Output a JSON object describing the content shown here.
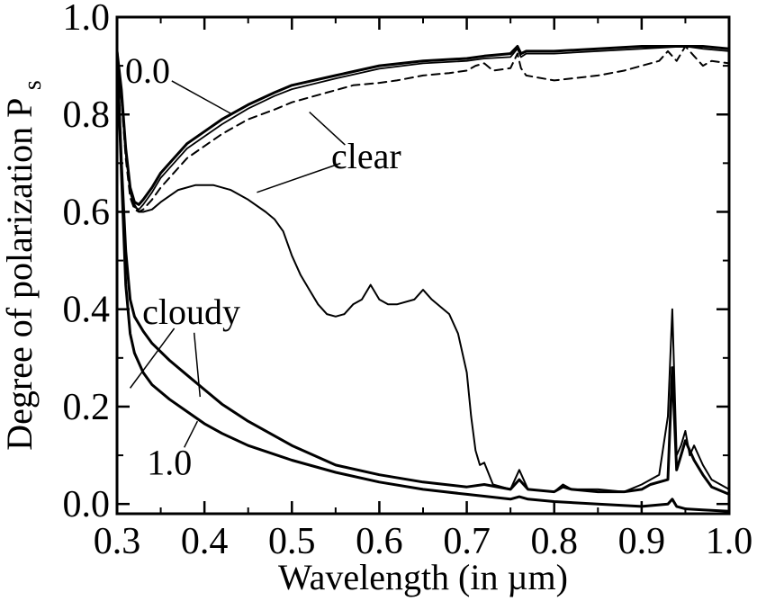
{
  "chart_data": {
    "type": "line",
    "xlabel": "Wavelength (in µm)",
    "ylabel": "Degree of polarization P",
    "ylabel_subscript": "s",
    "xlim": [
      0.3,
      1.0
    ],
    "ylim": [
      -0.02,
      1.0
    ],
    "xticks": [
      0.3,
      0.4,
      0.5,
      0.6,
      0.7,
      0.8,
      0.9,
      1.0
    ],
    "xtick_labels": [
      "0.3",
      "0.4",
      "0.5",
      "0.6",
      "0.7",
      "0.8",
      "0.9",
      "1.0"
    ],
    "yticks": [
      0.0,
      0.2,
      0.4,
      0.6,
      0.8,
      1.0
    ],
    "ytick_labels": [
      "0.0",
      "0.2",
      "0.4",
      "0.6",
      "0.8",
      "1.0"
    ],
    "grid": false,
    "annotations": [
      {
        "text": "0.0",
        "x": 0.335,
        "y": 0.865,
        "arrow_to": [
          0.432,
          0.8
        ]
      },
      {
        "text": "clear",
        "x": 0.585,
        "y": 0.69,
        "arrow_to": [
          [
            0.52,
            0.805
          ],
          [
            0.46,
            0.64
          ]
        ]
      },
      {
        "text": "cloudy",
        "x": 0.385,
        "y": 0.37,
        "arrow_to": [
          [
            0.315,
            0.238
          ],
          [
            0.395,
            0.22
          ]
        ]
      },
      {
        "text": "1.0",
        "x": 0.36,
        "y": 0.06,
        "arrow_to": [
          0.392,
          0.17
        ]
      }
    ],
    "series": [
      {
        "style": "solid-thick",
        "x": [
          0.3,
          0.305,
          0.31,
          0.315,
          0.32,
          0.325,
          0.33,
          0.34,
          0.35,
          0.36,
          0.38,
          0.4,
          0.42,
          0.45,
          0.48,
          0.5,
          0.55,
          0.6,
          0.65,
          0.7,
          0.72,
          0.75,
          0.758,
          0.762,
          0.768,
          0.8,
          0.85,
          0.9,
          0.93,
          0.95,
          0.97,
          1.0
        ],
        "y": [
          0.93,
          0.85,
          0.73,
          0.65,
          0.62,
          0.615,
          0.625,
          0.65,
          0.68,
          0.7,
          0.74,
          0.765,
          0.79,
          0.82,
          0.845,
          0.86,
          0.88,
          0.9,
          0.91,
          0.915,
          0.92,
          0.925,
          0.94,
          0.925,
          0.93,
          0.93,
          0.935,
          0.94,
          0.94,
          0.94,
          0.94,
          0.935
        ]
      },
      {
        "style": "solid-thin",
        "x": [
          0.3,
          0.305,
          0.31,
          0.315,
          0.32,
          0.325,
          0.33,
          0.34,
          0.35,
          0.36,
          0.38,
          0.4,
          0.42,
          0.45,
          0.48,
          0.5,
          0.55,
          0.6,
          0.65,
          0.7,
          0.72,
          0.75,
          0.758,
          0.762,
          0.768,
          0.8,
          0.85,
          0.9,
          0.93,
          0.95,
          0.97,
          1.0
        ],
        "y": [
          0.93,
          0.84,
          0.72,
          0.64,
          0.61,
          0.605,
          0.615,
          0.64,
          0.67,
          0.69,
          0.73,
          0.755,
          0.78,
          0.812,
          0.838,
          0.852,
          0.874,
          0.894,
          0.905,
          0.91,
          0.915,
          0.918,
          0.935,
          0.918,
          0.925,
          0.925,
          0.93,
          0.935,
          0.938,
          0.94,
          0.935,
          0.93
        ]
      },
      {
        "style": "dashed",
        "x": [
          0.3,
          0.305,
          0.31,
          0.315,
          0.32,
          0.325,
          0.33,
          0.34,
          0.35,
          0.36,
          0.38,
          0.4,
          0.42,
          0.45,
          0.48,
          0.5,
          0.52,
          0.54,
          0.55,
          0.57,
          0.6,
          0.62,
          0.65,
          0.68,
          0.7,
          0.71,
          0.72,
          0.73,
          0.75,
          0.758,
          0.762,
          0.768,
          0.8,
          0.85,
          0.88,
          0.9,
          0.92,
          0.93,
          0.94,
          0.95,
          0.96,
          0.97,
          0.98,
          1.0
        ],
        "y": [
          0.93,
          0.83,
          0.71,
          0.63,
          0.605,
          0.6,
          0.605,
          0.625,
          0.65,
          0.67,
          0.71,
          0.735,
          0.76,
          0.79,
          0.81,
          0.825,
          0.835,
          0.845,
          0.85,
          0.86,
          0.865,
          0.87,
          0.88,
          0.885,
          0.89,
          0.9,
          0.905,
          0.89,
          0.895,
          0.925,
          0.895,
          0.88,
          0.87,
          0.88,
          0.89,
          0.9,
          0.91,
          0.93,
          0.91,
          0.94,
          0.92,
          0.9,
          0.91,
          0.905
        ]
      },
      {
        "style": "solid",
        "x": [
          0.3,
          0.305,
          0.31,
          0.315,
          0.32,
          0.325,
          0.33,
          0.34,
          0.35,
          0.37,
          0.39,
          0.41,
          0.43,
          0.45,
          0.47,
          0.48,
          0.49,
          0.5,
          0.51,
          0.52,
          0.53,
          0.54,
          0.55,
          0.56,
          0.57,
          0.58,
          0.59,
          0.6,
          0.61,
          0.62,
          0.64,
          0.65,
          0.66,
          0.68,
          0.69,
          0.7,
          0.705,
          0.71,
          0.715,
          0.72,
          0.73,
          0.75,
          0.76,
          0.77,
          0.8,
          0.81,
          0.82,
          0.85,
          0.88,
          0.9,
          0.92,
          0.93,
          0.935,
          0.94,
          0.945,
          0.95,
          0.955,
          0.96,
          0.97,
          0.98,
          1.0
        ],
        "y": [
          0.93,
          0.83,
          0.72,
          0.65,
          0.615,
          0.6,
          0.6,
          0.605,
          0.62,
          0.645,
          0.655,
          0.655,
          0.645,
          0.625,
          0.6,
          0.585,
          0.56,
          0.51,
          0.47,
          0.44,
          0.41,
          0.39,
          0.385,
          0.39,
          0.41,
          0.42,
          0.45,
          0.42,
          0.41,
          0.41,
          0.42,
          0.44,
          0.42,
          0.39,
          0.35,
          0.27,
          0.18,
          0.11,
          0.08,
          0.085,
          0.04,
          0.03,
          0.07,
          0.03,
          0.025,
          0.04,
          0.03,
          0.03,
          0.025,
          0.04,
          0.06,
          0.18,
          0.4,
          0.1,
          0.12,
          0.15,
          0.1,
          0.12,
          0.08,
          0.05,
          0.03
        ]
      },
      {
        "style": "solid-thick",
        "x": [
          0.3,
          0.305,
          0.31,
          0.315,
          0.32,
          0.33,
          0.34,
          0.36,
          0.38,
          0.4,
          0.42,
          0.45,
          0.5,
          0.55,
          0.6,
          0.65,
          0.7,
          0.72,
          0.75,
          0.76,
          0.77,
          0.8,
          0.81,
          0.82,
          0.85,
          0.88,
          0.9,
          0.91,
          0.93,
          0.935,
          0.94,
          0.945,
          0.95,
          0.96,
          0.97,
          0.98,
          1.0
        ],
        "y": [
          0.93,
          0.7,
          0.52,
          0.42,
          0.385,
          0.355,
          0.33,
          0.295,
          0.265,
          0.235,
          0.205,
          0.17,
          0.12,
          0.08,
          0.06,
          0.045,
          0.035,
          0.04,
          0.03,
          0.05,
          0.03,
          0.025,
          0.035,
          0.03,
          0.025,
          0.025,
          0.03,
          0.04,
          0.05,
          0.28,
          0.07,
          0.1,
          0.13,
          0.09,
          0.06,
          0.035,
          0.02
        ]
      },
      {
        "style": "solid-thick",
        "x": [
          0.3,
          0.305,
          0.31,
          0.315,
          0.32,
          0.33,
          0.34,
          0.36,
          0.38,
          0.4,
          0.42,
          0.45,
          0.5,
          0.55,
          0.6,
          0.65,
          0.7,
          0.75,
          0.76,
          0.77,
          0.8,
          0.85,
          0.9,
          0.93,
          0.935,
          0.94,
          0.95,
          0.97,
          1.0
        ],
        "y": [
          0.93,
          0.68,
          0.45,
          0.35,
          0.31,
          0.27,
          0.245,
          0.215,
          0.19,
          0.165,
          0.145,
          0.12,
          0.09,
          0.065,
          0.045,
          0.03,
          0.02,
          0.01,
          0.015,
          0.01,
          0.005,
          0.0,
          -0.005,
          0.0,
          0.01,
          -0.005,
          -0.01,
          -0.012,
          -0.015
        ]
      }
    ]
  }
}
